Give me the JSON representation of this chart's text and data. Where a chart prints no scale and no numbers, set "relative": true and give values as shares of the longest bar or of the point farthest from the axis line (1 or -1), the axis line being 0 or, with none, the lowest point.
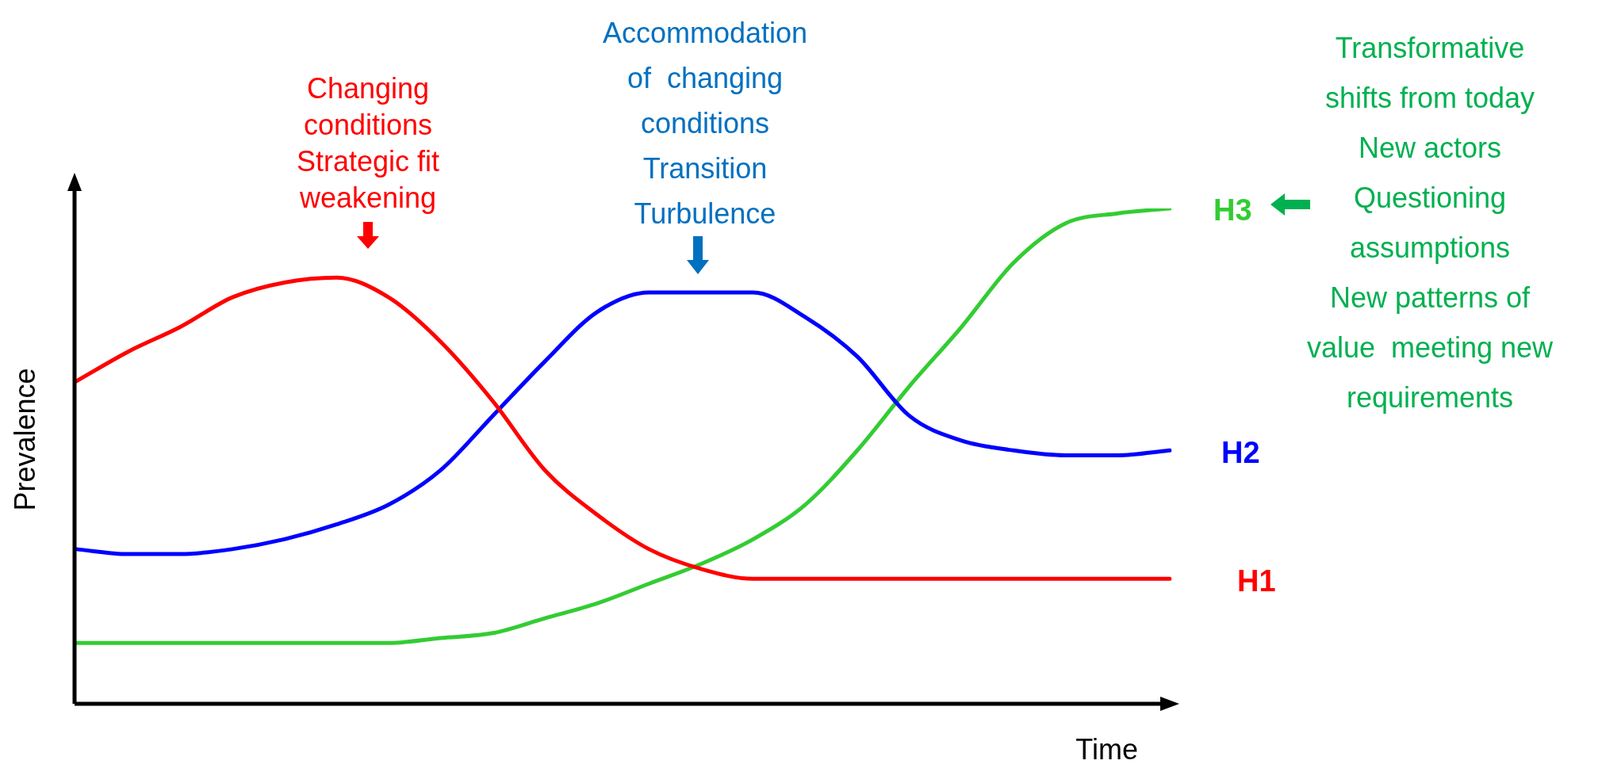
{
  "chart_data": {
    "type": "line",
    "relative": true,
    "xlabel": "Time",
    "ylabel": "Prevalence",
    "categories": [
      null,
      null,
      null,
      null,
      null,
      null,
      null,
      null,
      null,
      null,
      null,
      null,
      null,
      null,
      null,
      null,
      null,
      null,
      null,
      null,
      null,
      null
    ],
    "series": [
      {
        "name": "H1",
        "color": "#ff0000",
        "values": [
          0.65,
          0.71,
          0.76,
          0.82,
          0.85,
          0.86,
          0.82,
          0.73,
          0.61,
          0.47,
          0.38,
          0.31,
          0.27,
          0.25,
          0.25,
          0.25,
          0.25,
          0.25,
          0.25,
          0.25,
          0.25,
          0.25
        ]
      },
      {
        "name": "H2",
        "color": "#0000ff",
        "values": [
          0.31,
          0.3,
          0.3,
          0.31,
          0.33,
          0.36,
          0.4,
          0.47,
          0.58,
          0.69,
          0.79,
          0.83,
          0.83,
          0.83,
          0.78,
          0.7,
          0.58,
          0.53,
          0.51,
          0.5,
          0.5,
          0.51
        ]
      },
      {
        "name": "H3",
        "color": "#33cc33",
        "values": [
          0.12,
          0.12,
          0.12,
          0.12,
          0.12,
          0.12,
          0.12,
          0.13,
          0.14,
          0.17,
          0.2,
          0.24,
          0.28,
          0.33,
          0.4,
          0.51,
          0.64,
          0.76,
          0.89,
          0.97,
          0.99,
          1
        ]
      }
    ],
    "annotations": [
      "Changing\nconditions\nStrategic fit\nweakening",
      "Accommodation\nof  changing\nconditions\nTransition\nTurbulence",
      "Transformative\nshifts from today\nNew actors\nQuestioning\nassumptions\nNew patterns of\nvalue  meeting new\nrequirements"
    ]
  }
}
